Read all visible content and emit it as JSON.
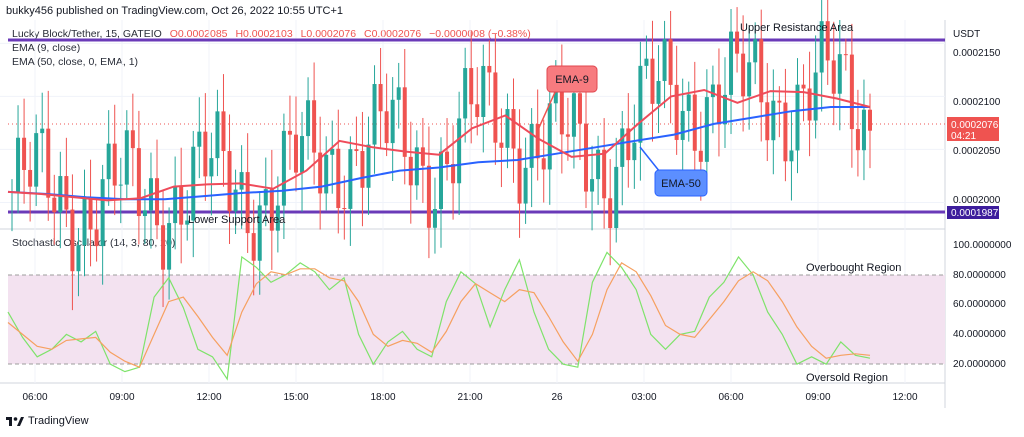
{
  "header": {
    "publish_line": "bukky456 published on TradingView.com, Oct 26, 2022 10:55 UTC+1"
  },
  "legend": {
    "symbol": "Lucky Block/Tether, 15, GATEIO",
    "open": "O0.0002085",
    "high": "H0.0002103",
    "low": "L0.0002076",
    "close": "C0.0002076",
    "change": "−0.0000008 (−0.38%)",
    "ema9": "EMA (9, close)",
    "ema50": "EMA (50, close, 0, EMA, 1)",
    "stoch": "Stochastic Oscillator (14, 3, 80, 20)"
  },
  "annotations": {
    "upper_resistance": "Upper Resistance Area",
    "lower_support": "Lower Support Area",
    "ema9_callout": "EMA-9",
    "ema50_callout": "EMA-50",
    "overbought": "Overbought Region",
    "oversold": "Oversold Region"
  },
  "price_axis": {
    "currency": "USDT",
    "ticks": [
      "0.0002150",
      "0.0002100",
      "0.0002050",
      "0.0002000"
    ],
    "current_price": "0.0002076",
    "countdown": "04:21",
    "level_price": "0.0001987"
  },
  "stoch_axis": {
    "ticks": [
      "100.0000000",
      "80.0000000",
      "60.0000000",
      "40.0000000",
      "20.0000000"
    ]
  },
  "time_axis": {
    "ticks": [
      "06:00",
      "09:00",
      "12:00",
      "15:00",
      "18:00",
      "21:00",
      "26",
      "03:00",
      "06:00",
      "09:00",
      "12:00"
    ]
  },
  "footer": {
    "brand": "TradingView"
  },
  "colors": {
    "up": "#26a69a",
    "down": "#ef5350",
    "ema9": "#ef4b5a",
    "ema50": "#2962ff",
    "level": "#6a3ab8",
    "stoch_k": "#7ee36a",
    "stoch_d": "#f6a060",
    "stoch_band": "#f3e2f0"
  },
  "chart_data": [
    {
      "type": "candlestick",
      "title": "Lucky Block/Tether, 15, GATEIO",
      "x_ticks": [
        "06:00",
        "09:00",
        "12:00",
        "15:00",
        "18:00",
        "21:00",
        "26",
        "03:00",
        "06:00",
        "09:00",
        "12:00"
      ],
      "ylim": [
        0.0001975,
        0.0002172
      ],
      "horizontal_levels": {
        "upper_resistance": 0.0002165,
        "lower_support": 0.0001987
      },
      "series": [
        {
          "name": "EMA (9, close)",
          "y": [
            0.000201,
            0.0002008,
            0.0002005,
            0.0002002,
            0.0002004,
            0.0002015,
            0.0002017,
            0.0002018,
            0.0002013,
            0.000203,
            0.0002058,
            0.0002052,
            0.0002048,
            0.0002045,
            0.000207,
            0.0002082,
            0.000206,
            0.0002043,
            0.0002046,
            0.0002074,
            0.00021,
            0.0002106,
            0.0002094,
            0.0002105,
            0.0002104,
            0.0002098,
            0.000209
          ]
        },
        {
          "name": "EMA (50, close, 0, EMA, 1)",
          "y": [
            0.000201,
            0.0002008,
            0.0002005,
            0.0002003,
            0.0002003,
            0.0002006,
            0.0002009,
            0.0002011,
            0.0002015,
            0.0002023,
            0.000203,
            0.0002033,
            0.0002038,
            0.000204,
            0.0002046,
            0.0002052,
            0.0002058,
            0.0002064,
            0.0002074,
            0.000208,
            0.0002086,
            0.000209,
            0.000209
          ]
        }
      ],
      "last": {
        "open": 0.0002085,
        "high": 0.0002103,
        "low": 0.0002076,
        "close": 0.0002076
      }
    },
    {
      "type": "line",
      "title": "Stochastic Oscillator (14, 3, 80, 20)",
      "ylim": [
        0,
        100
      ],
      "bands": [
        20,
        80
      ],
      "series": [
        {
          "name": "%K",
          "y": [
            55,
            38,
            25,
            30,
            40,
            35,
            42,
            20,
            15,
            18,
            65,
            78,
            58,
            30,
            25,
            10,
            92,
            85,
            75,
            80,
            88,
            82,
            70,
            78,
            40,
            20,
            35,
            42,
            30,
            25,
            62,
            82,
            74,
            45,
            70,
            90,
            55,
            30,
            20,
            18,
            75,
            95,
            85,
            70,
            40,
            30,
            40,
            42,
            65,
            75,
            92,
            80,
            55,
            40,
            20,
            25,
            20,
            35,
            26,
            24
          ]
        },
        {
          "name": "%D",
          "y": [
            48,
            40,
            32,
            30,
            36,
            37,
            38,
            28,
            22,
            18,
            40,
            62,
            65,
            52,
            38,
            26,
            55,
            74,
            82,
            80,
            84,
            84,
            78,
            76,
            62,
            40,
            32,
            36,
            34,
            28,
            42,
            62,
            74,
            68,
            62,
            70,
            68,
            52,
            35,
            22,
            40,
            70,
            88,
            82,
            66,
            46,
            40,
            38,
            50,
            62,
            76,
            82,
            76,
            62,
            45,
            32,
            24,
            26,
            27,
            26
          ]
        }
      ]
    }
  ]
}
